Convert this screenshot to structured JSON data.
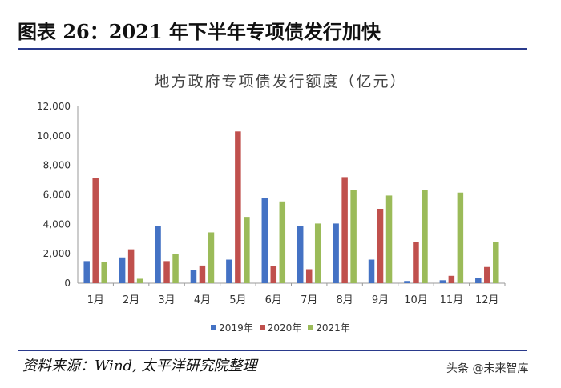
{
  "figure": {
    "title": "图表 26：2021 年下半年专项债发行加快",
    "source": "资料来源：Wind, 太平洋研究院整理",
    "watermark": "头条 @未来智库"
  },
  "chart_data": {
    "type": "bar",
    "title": "地方政府专项债发行额度（亿元）",
    "categories": [
      "1月",
      "2月",
      "3月",
      "4月",
      "5月",
      "6月",
      "7月",
      "8月",
      "9月",
      "10月",
      "11月",
      "12月"
    ],
    "series": [
      {
        "name": "2019年",
        "color": "#4472C4",
        "values": [
          1500,
          1750,
          3900,
          900,
          1600,
          5800,
          3900,
          4050,
          1600,
          150,
          200,
          350
        ]
      },
      {
        "name": "2020年",
        "color": "#C0504D",
        "values": [
          7150,
          2300,
          1500,
          1200,
          10300,
          1150,
          950,
          7200,
          5050,
          2800,
          500,
          1100
        ]
      },
      {
        "name": "2021年",
        "color": "#9BBB59",
        "values": [
          1450,
          300,
          2000,
          3450,
          4500,
          5550,
          4050,
          6300,
          5950,
          6350,
          6150,
          2800
        ]
      }
    ],
    "y_ticks": [
      "0",
      "2,000",
      "4,000",
      "6,000",
      "8,000",
      "10,000",
      "12,000"
    ],
    "ylim": [
      0,
      12000
    ],
    "xlabel": "",
    "ylabel": "",
    "legend_position": "bottom",
    "grid": false
  }
}
